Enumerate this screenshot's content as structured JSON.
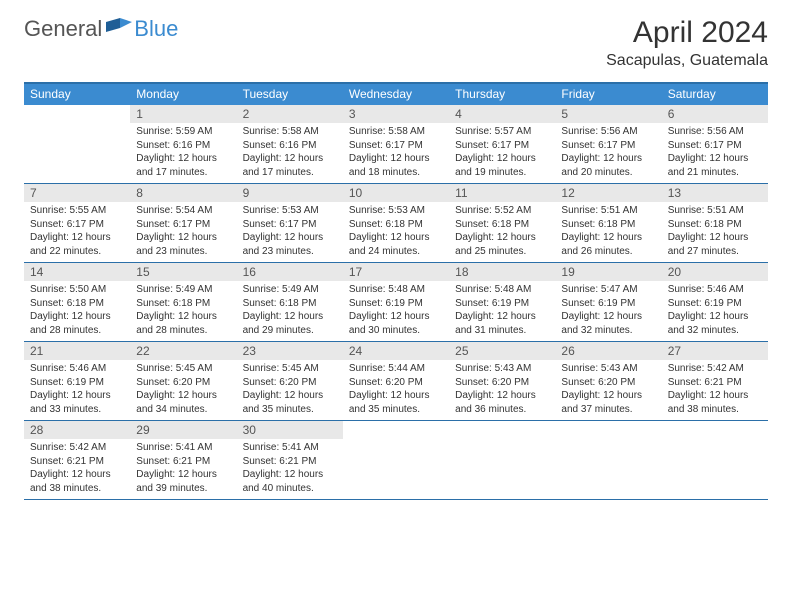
{
  "brand": {
    "text_general": "General",
    "text_blue": "Blue"
  },
  "title": "April 2024",
  "location": "Sacapulas, Guatemala",
  "colors": {
    "header_bg": "#3b8bd0",
    "header_text": "#ffffff",
    "rule": "#2b6fa8",
    "daynum_bg": "#e8e8e8",
    "text": "#333333",
    "background": "#ffffff"
  },
  "day_names": [
    "Sunday",
    "Monday",
    "Tuesday",
    "Wednesday",
    "Thursday",
    "Friday",
    "Saturday"
  ],
  "labels": {
    "sunrise": "Sunrise:",
    "sunset": "Sunset:",
    "daylight": "Daylight:"
  },
  "weeks": [
    [
      {
        "num": "",
        "empty": true
      },
      {
        "num": "1",
        "sunrise": "5:59 AM",
        "sunset": "6:16 PM",
        "daylight": "12 hours and 17 minutes."
      },
      {
        "num": "2",
        "sunrise": "5:58 AM",
        "sunset": "6:16 PM",
        "daylight": "12 hours and 17 minutes."
      },
      {
        "num": "3",
        "sunrise": "5:58 AM",
        "sunset": "6:17 PM",
        "daylight": "12 hours and 18 minutes."
      },
      {
        "num": "4",
        "sunrise": "5:57 AM",
        "sunset": "6:17 PM",
        "daylight": "12 hours and 19 minutes."
      },
      {
        "num": "5",
        "sunrise": "5:56 AM",
        "sunset": "6:17 PM",
        "daylight": "12 hours and 20 minutes."
      },
      {
        "num": "6",
        "sunrise": "5:56 AM",
        "sunset": "6:17 PM",
        "daylight": "12 hours and 21 minutes."
      }
    ],
    [
      {
        "num": "7",
        "sunrise": "5:55 AM",
        "sunset": "6:17 PM",
        "daylight": "12 hours and 22 minutes."
      },
      {
        "num": "8",
        "sunrise": "5:54 AM",
        "sunset": "6:17 PM",
        "daylight": "12 hours and 23 minutes."
      },
      {
        "num": "9",
        "sunrise": "5:53 AM",
        "sunset": "6:17 PM",
        "daylight": "12 hours and 23 minutes."
      },
      {
        "num": "10",
        "sunrise": "5:53 AM",
        "sunset": "6:18 PM",
        "daylight": "12 hours and 24 minutes."
      },
      {
        "num": "11",
        "sunrise": "5:52 AM",
        "sunset": "6:18 PM",
        "daylight": "12 hours and 25 minutes."
      },
      {
        "num": "12",
        "sunrise": "5:51 AM",
        "sunset": "6:18 PM",
        "daylight": "12 hours and 26 minutes."
      },
      {
        "num": "13",
        "sunrise": "5:51 AM",
        "sunset": "6:18 PM",
        "daylight": "12 hours and 27 minutes."
      }
    ],
    [
      {
        "num": "14",
        "sunrise": "5:50 AM",
        "sunset": "6:18 PM",
        "daylight": "12 hours and 28 minutes."
      },
      {
        "num": "15",
        "sunrise": "5:49 AM",
        "sunset": "6:18 PM",
        "daylight": "12 hours and 28 minutes."
      },
      {
        "num": "16",
        "sunrise": "5:49 AM",
        "sunset": "6:18 PM",
        "daylight": "12 hours and 29 minutes."
      },
      {
        "num": "17",
        "sunrise": "5:48 AM",
        "sunset": "6:19 PM",
        "daylight": "12 hours and 30 minutes."
      },
      {
        "num": "18",
        "sunrise": "5:48 AM",
        "sunset": "6:19 PM",
        "daylight": "12 hours and 31 minutes."
      },
      {
        "num": "19",
        "sunrise": "5:47 AM",
        "sunset": "6:19 PM",
        "daylight": "12 hours and 32 minutes."
      },
      {
        "num": "20",
        "sunrise": "5:46 AM",
        "sunset": "6:19 PM",
        "daylight": "12 hours and 32 minutes."
      }
    ],
    [
      {
        "num": "21",
        "sunrise": "5:46 AM",
        "sunset": "6:19 PM",
        "daylight": "12 hours and 33 minutes."
      },
      {
        "num": "22",
        "sunrise": "5:45 AM",
        "sunset": "6:20 PM",
        "daylight": "12 hours and 34 minutes."
      },
      {
        "num": "23",
        "sunrise": "5:45 AM",
        "sunset": "6:20 PM",
        "daylight": "12 hours and 35 minutes."
      },
      {
        "num": "24",
        "sunrise": "5:44 AM",
        "sunset": "6:20 PM",
        "daylight": "12 hours and 35 minutes."
      },
      {
        "num": "25",
        "sunrise": "5:43 AM",
        "sunset": "6:20 PM",
        "daylight": "12 hours and 36 minutes."
      },
      {
        "num": "26",
        "sunrise": "5:43 AM",
        "sunset": "6:20 PM",
        "daylight": "12 hours and 37 minutes."
      },
      {
        "num": "27",
        "sunrise": "5:42 AM",
        "sunset": "6:21 PM",
        "daylight": "12 hours and 38 minutes."
      }
    ],
    [
      {
        "num": "28",
        "sunrise": "5:42 AM",
        "sunset": "6:21 PM",
        "daylight": "12 hours and 38 minutes."
      },
      {
        "num": "29",
        "sunrise": "5:41 AM",
        "sunset": "6:21 PM",
        "daylight": "12 hours and 39 minutes."
      },
      {
        "num": "30",
        "sunrise": "5:41 AM",
        "sunset": "6:21 PM",
        "daylight": "12 hours and 40 minutes."
      },
      {
        "num": "",
        "empty": true
      },
      {
        "num": "",
        "empty": true
      },
      {
        "num": "",
        "empty": true
      },
      {
        "num": "",
        "empty": true
      }
    ]
  ]
}
